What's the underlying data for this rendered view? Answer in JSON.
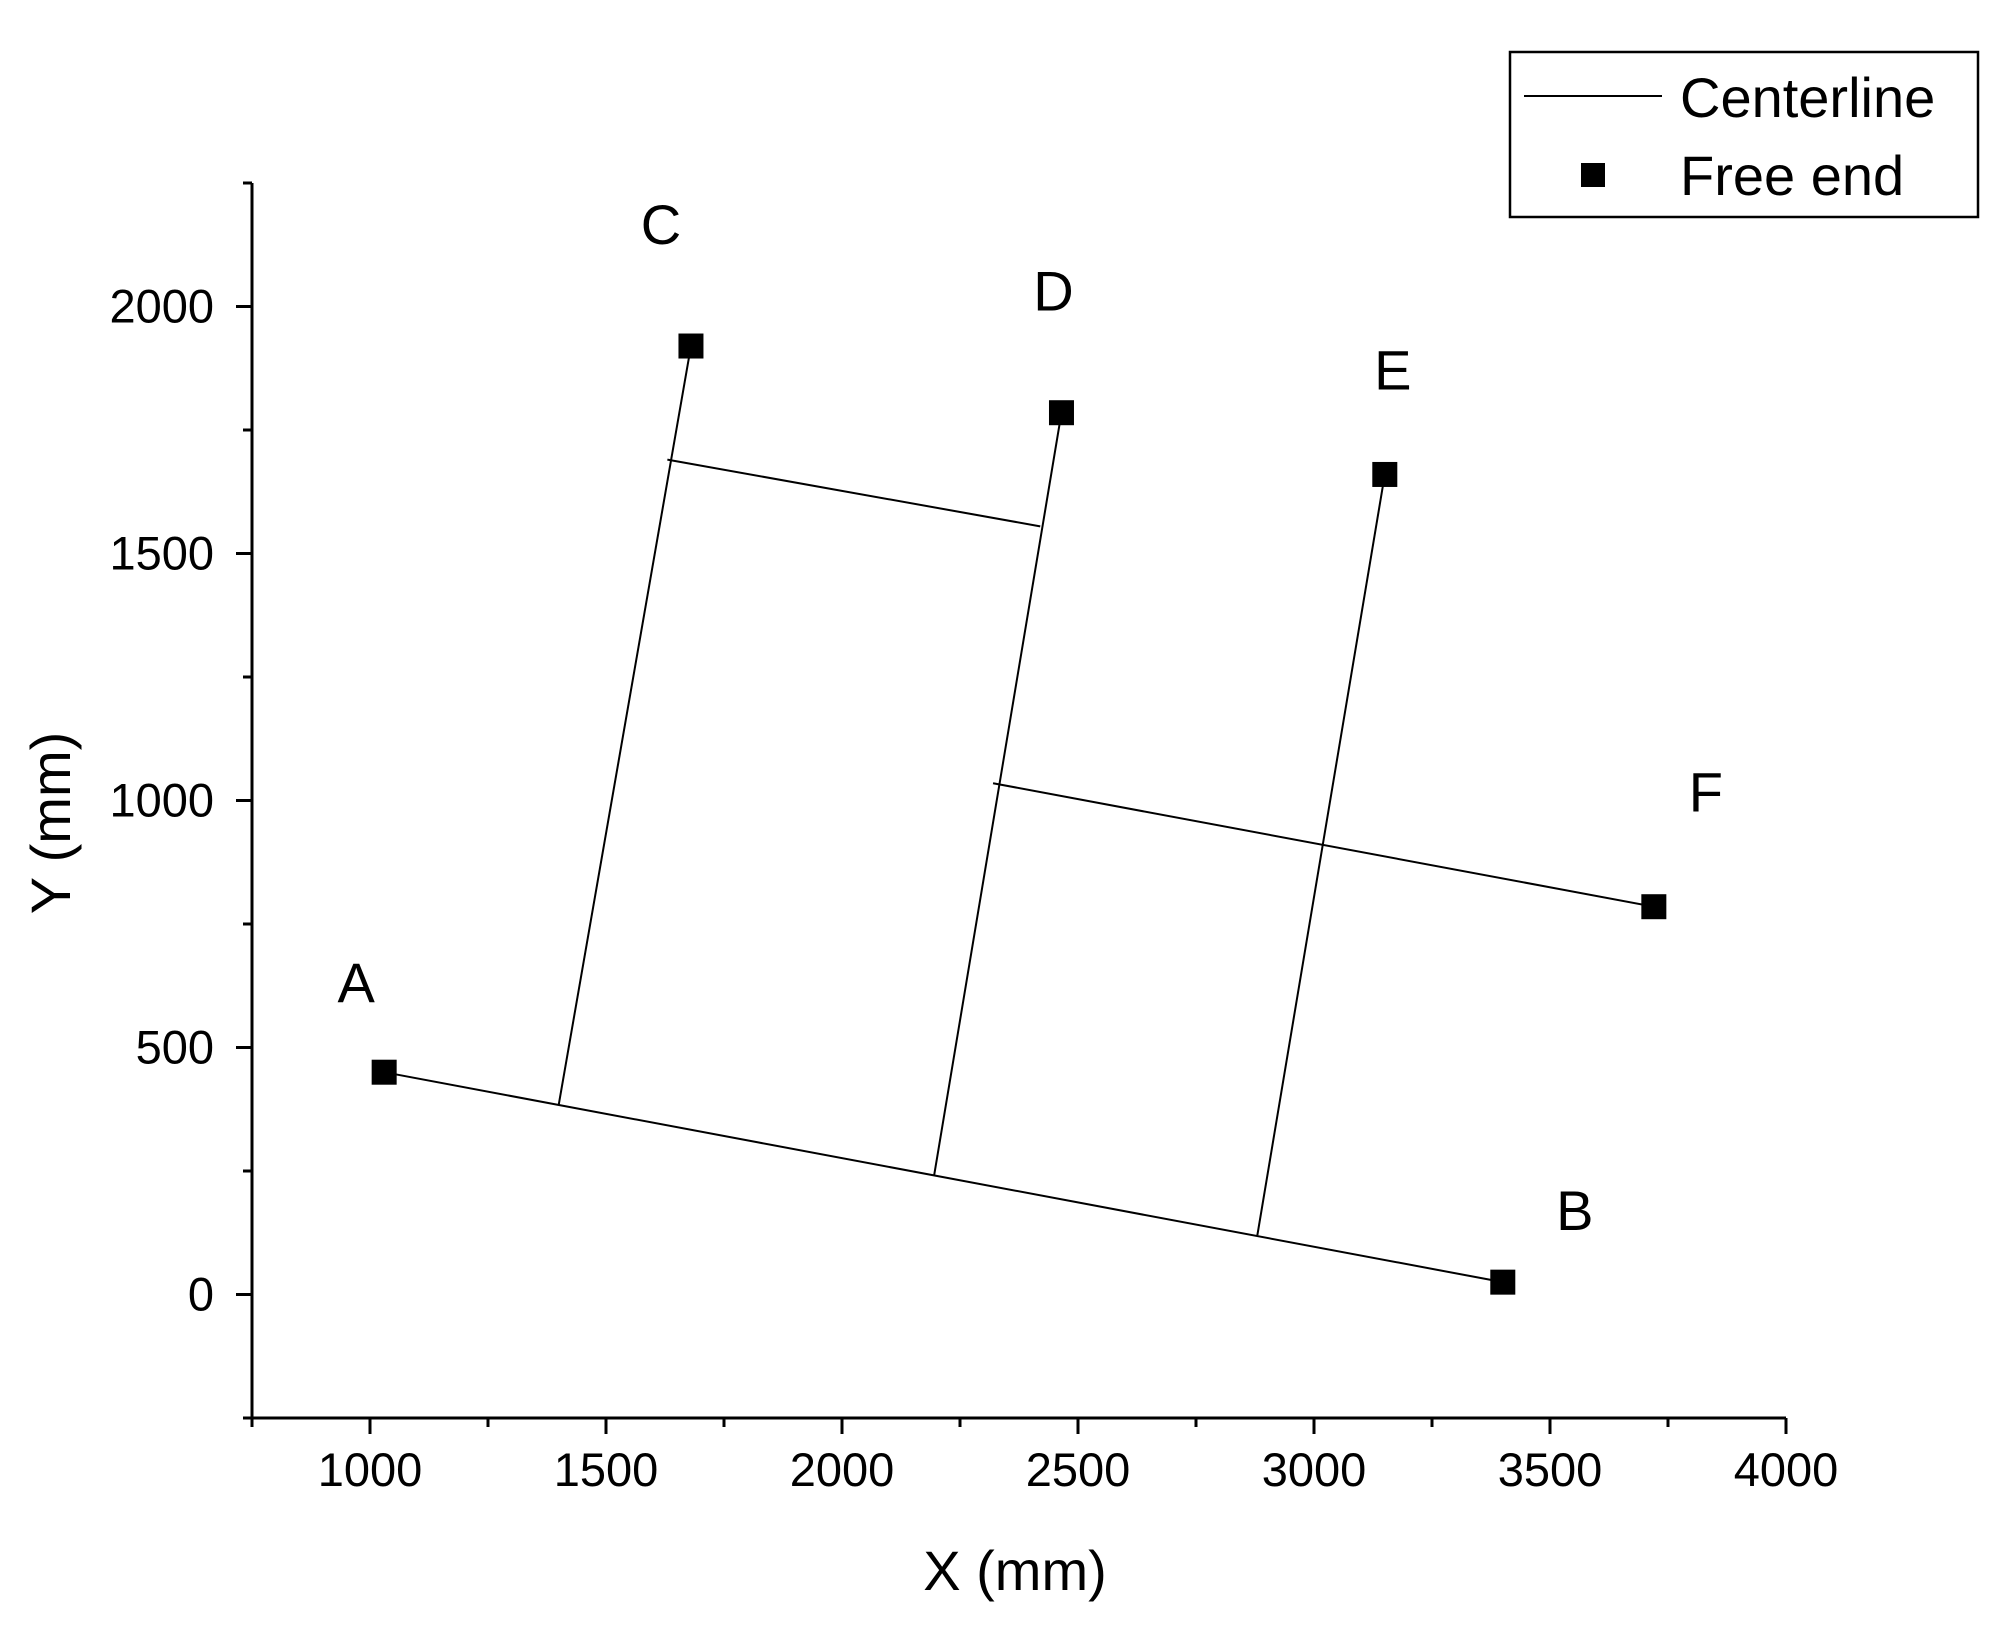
{
  "chart_data": {
    "type": "line",
    "xlabel": "X (mm)",
    "ylabel": "Y (mm)",
    "xlim": [
      750,
      4000
    ],
    "ylim": [
      -250,
      2250
    ],
    "xticks": [
      1000,
      1500,
      2000,
      2500,
      3000,
      3500,
      4000
    ],
    "xtick_labels": [
      "1000",
      "1500",
      "2000",
      "2500",
      "3000",
      "3500",
      "4000"
    ],
    "yticks": [
      0,
      500,
      1000,
      1500,
      2000
    ],
    "ytick_labels": [
      "0",
      "500",
      "1000",
      "1500",
      "2000"
    ],
    "grid": false,
    "legend": {
      "position": "top-right",
      "entries": [
        {
          "label": "Centerline",
          "marker": "line"
        },
        {
          "label": "Free end",
          "marker": "square"
        }
      ]
    },
    "free_ends": [
      {
        "label": "A",
        "x": 1030,
        "y": 450
      },
      {
        "label": "B",
        "x": 3400,
        "y": 25
      },
      {
        "label": "C",
        "x": 1680,
        "y": 1920
      },
      {
        "label": "D",
        "x": 2465,
        "y": 1785
      },
      {
        "label": "E",
        "x": 3150,
        "y": 1660
      },
      {
        "label": "F",
        "x": 3720,
        "y": 785
      }
    ],
    "centerlines": [
      {
        "name": "A-B",
        "points": [
          [
            1030,
            450
          ],
          [
            3400,
            25
          ]
        ]
      },
      {
        "name": "C",
        "points": [
          [
            1680,
            1920
          ],
          [
            1400,
            385
          ]
        ]
      },
      {
        "name": "D",
        "points": [
          [
            2465,
            1785
          ],
          [
            2195,
            240
          ]
        ]
      },
      {
        "name": "E",
        "points": [
          [
            3150,
            1660
          ],
          [
            2880,
            120
          ]
        ]
      },
      {
        "name": "F",
        "points": [
          [
            3720,
            785
          ],
          [
            2320,
            1035
          ]
        ]
      },
      {
        "name": "C-D link",
        "points": [
          [
            1630,
            1690
          ],
          [
            2420,
            1555
          ]
        ]
      }
    ]
  }
}
